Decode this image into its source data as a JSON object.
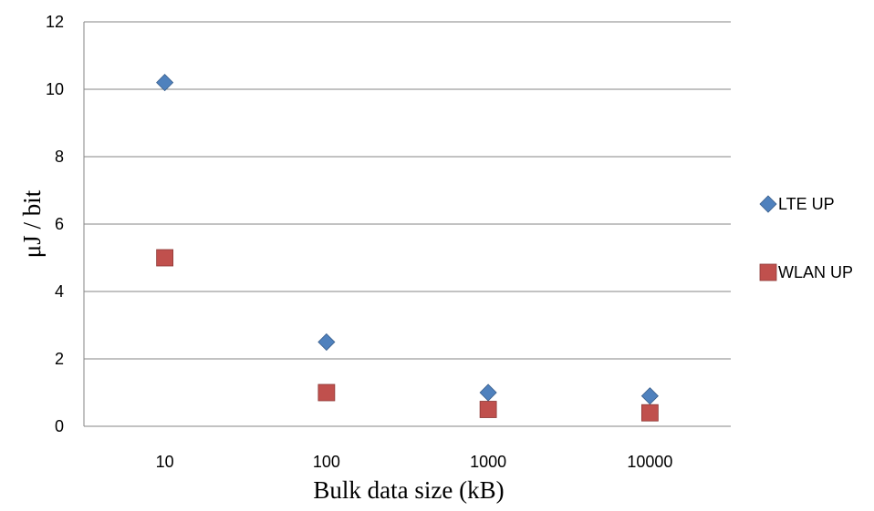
{
  "chart_data": {
    "type": "scatter",
    "categories": [
      "10",
      "100",
      "1000",
      "10000"
    ],
    "series": [
      {
        "name": "LTE UP",
        "values": [
          10.2,
          2.5,
          1.0,
          0.9
        ],
        "color": "#4F81BD",
        "marker": "diamond"
      },
      {
        "name": "WLAN UP",
        "values": [
          5.0,
          1.0,
          0.5,
          0.4
        ],
        "color": "#C0504D",
        "marker": "square"
      }
    ],
    "xlabel": "Bulk data size (kB)",
    "ylabel": "μJ / bit",
    "ylim": [
      0,
      12
    ],
    "yticks": [
      "0",
      "2",
      "4",
      "6",
      "8",
      "10",
      "12"
    ],
    "grid": "horizontal",
    "legend_position": "right"
  }
}
